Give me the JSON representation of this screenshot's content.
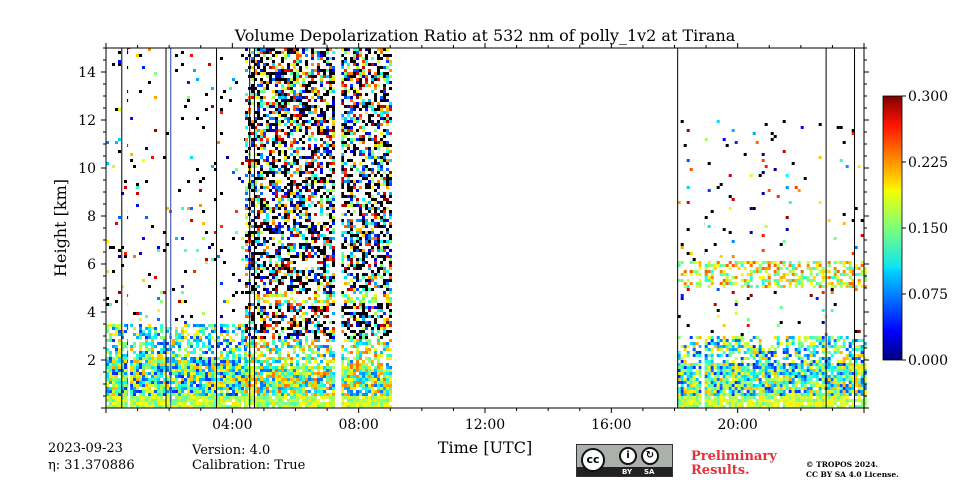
{
  "chart_data": {
    "type": "heatmap",
    "title": "Volume Depolarization Ratio at 532 nm of polly_1v2 at Tirana",
    "xlabel": "Time [UTC]",
    "ylabel": "Height [km]",
    "xlim_hours": [
      0,
      24
    ],
    "ylim_km": [
      0,
      15
    ],
    "x_ticks": [
      {
        "hour": 4,
        "label": "04:00"
      },
      {
        "hour": 8,
        "label": "08:00"
      },
      {
        "hour": 12,
        "label": "12:00"
      },
      {
        "hour": 16,
        "label": "16:00"
      },
      {
        "hour": 20,
        "label": "20:00"
      }
    ],
    "y_ticks": [
      {
        "km": 2,
        "label": "2"
      },
      {
        "km": 4,
        "label": "4"
      },
      {
        "km": 6,
        "label": "6"
      },
      {
        "km": 8,
        "label": "8"
      },
      {
        "km": 10,
        "label": "10"
      },
      {
        "km": 12,
        "label": "12"
      },
      {
        "km": 14,
        "label": "14"
      }
    ],
    "colorbar": {
      "min": 0.0,
      "max": 0.3,
      "ticks": [
        "0.000",
        "0.075",
        "0.150",
        "0.225",
        "0.300"
      ],
      "colormap": "jet"
    },
    "data_segments": [
      {
        "start_hour": 0.0,
        "end_hour": 4.4,
        "noise_top_km": 15,
        "aerosol_top_km": 3.5,
        "mean_ratio": 0.13,
        "noise_density": 0.04
      },
      {
        "start_hour": 4.4,
        "end_hour": 9.0,
        "noise_top_km": 15,
        "aerosol_top_km": 2.8,
        "mean_ratio": 0.15,
        "noise_density": 0.55,
        "elevated_layer_km": [
          4.3,
          4.7
        ]
      },
      {
        "start_hour": 18.1,
        "end_hour": 24.0,
        "noise_top_km": 12,
        "aerosol_top_km": 3.0,
        "mean_ratio": 0.13,
        "noise_density": 0.03,
        "elevated_layer_km": [
          5.0,
          6.0
        ]
      }
    ],
    "gaps_hours": [
      [
        0.7,
        0.75
      ],
      [
        7.25,
        7.45
      ],
      [
        18.85,
        18.95
      ]
    ],
    "vertical_lines_hours": [
      0.5,
      1.9,
      2.05,
      3.5,
      4.55,
      4.7,
      18.1,
      22.8,
      23.7
    ]
  },
  "footer": {
    "date": "2023-09-23",
    "eta": "η: 31.370886",
    "version": "Version: 4.0",
    "calibration": "Calibration: True",
    "preliminary_line1": "Preliminary",
    "preliminary_line2": "Results.",
    "copyright_line1": "© TROPOS 2024.",
    "copyright_line2": "CC BY SA 4.0 License.",
    "license_badge": {
      "cc": "cc",
      "by": "BY",
      "sa": "SA"
    }
  },
  "colors": {
    "preliminary": "#e8303a"
  }
}
